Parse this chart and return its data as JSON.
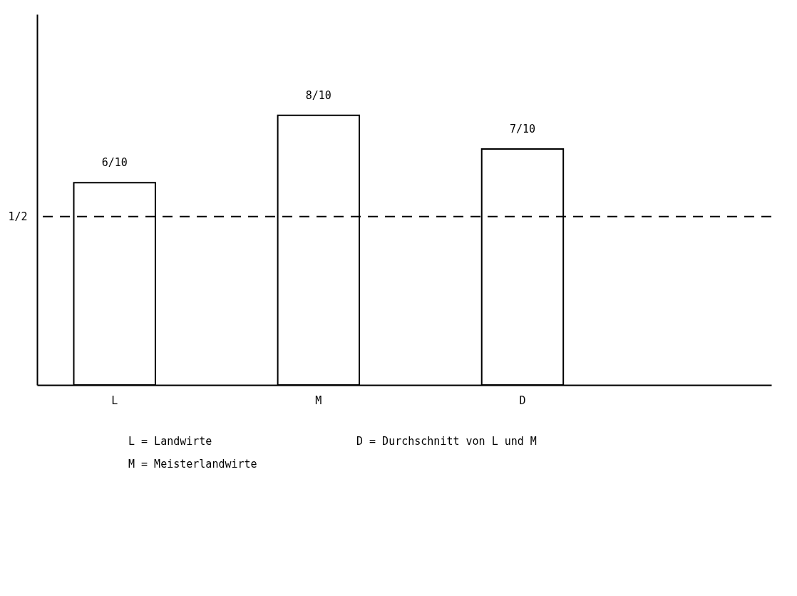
{
  "chart_data": {
    "type": "bar",
    "categories": [
      "L",
      "M",
      "D"
    ],
    "values": [
      0.6,
      0.8,
      0.7
    ],
    "value_labels": [
      "6/10",
      "8/10",
      "7/10"
    ],
    "color": "#ffffff",
    "ylim": [
      0,
      1.1
    ],
    "yticks": [
      {
        "value": 0.5,
        "label": "1/2"
      }
    ],
    "ref_lines": [
      {
        "axis": "y",
        "value": 0.5,
        "line_style": "dashed"
      }
    ],
    "grid": false,
    "annotations": [
      "L = Landwirte",
      "D = Durchschnitt von L und M",
      "M = Meisterlandwirte"
    ]
  }
}
